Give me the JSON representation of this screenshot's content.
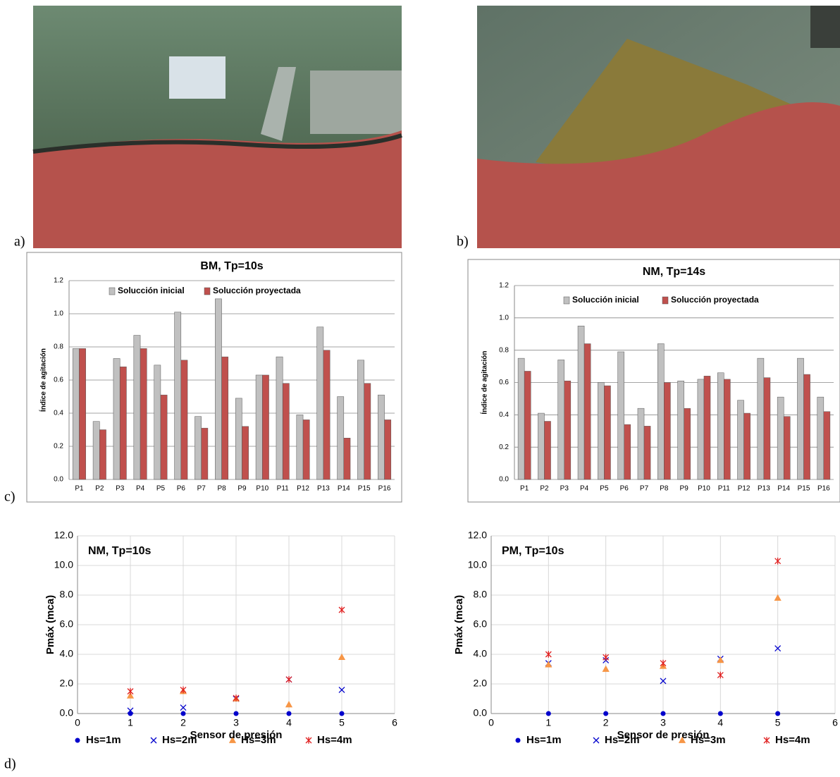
{
  "panel_labels": [
    "a)",
    "b)",
    "c)",
    "d)"
  ],
  "chart_data": [
    {
      "type": "bar",
      "title": "BM, Tp=10s",
      "y_label": "Índice de agitación",
      "categories": [
        "P1",
        "P2",
        "P3",
        "P4",
        "P5",
        "P6",
        "P7",
        "P8",
        "P9",
        "P10",
        "P11",
        "P12",
        "P13",
        "P14",
        "P15",
        "P16"
      ],
      "series": [
        {
          "name": "Solucción inicial",
          "color": "#c0c0c0",
          "values": [
            0.79,
            0.35,
            0.73,
            0.87,
            0.69,
            1.01,
            0.38,
            1.09,
            0.49,
            0.63,
            0.74,
            0.39,
            0.92,
            0.5,
            0.72,
            0.51
          ]
        },
        {
          "name": "Solucción proyectada",
          "color": "#c0504d",
          "values": [
            0.79,
            0.3,
            0.68,
            0.79,
            0.51,
            0.72,
            0.31,
            0.74,
            0.32,
            0.63,
            0.58,
            0.36,
            0.78,
            0.25,
            0.58,
            0.36
          ]
        }
      ],
      "ylim": [
        0,
        1.2
      ],
      "yticks": [
        {
          "value": 0,
          "label": "0.0"
        },
        {
          "value": 0.2,
          "label": "0.2"
        },
        {
          "value": 0.4,
          "label": "0.4"
        },
        {
          "value": 0.6,
          "label": "0.6"
        },
        {
          "value": 0.8,
          "label": "0.8"
        },
        {
          "value": 1,
          "label": "1.0"
        },
        {
          "value": 1.2,
          "label": "1.2"
        }
      ],
      "grid": true
    },
    {
      "type": "bar",
      "title": "NM, Tp=14s",
      "y_label": "Índice de agitación",
      "categories": [
        "P1",
        "P2",
        "P3",
        "P4",
        "P5",
        "P6",
        "P7",
        "P8",
        "P9",
        "P10",
        "P11",
        "P12",
        "P13",
        "P14",
        "P15",
        "P16"
      ],
      "series": [
        {
          "name": "Solucción inicial",
          "color": "#c0c0c0",
          "values": [
            0.75,
            0.41,
            0.74,
            0.95,
            0.6,
            0.79,
            0.44,
            0.84,
            0.61,
            0.62,
            0.66,
            0.49,
            0.75,
            0.51,
            0.75,
            0.51
          ]
        },
        {
          "name": "Solucción proyectada",
          "color": "#c0504d",
          "values": [
            0.67,
            0.36,
            0.61,
            0.84,
            0.58,
            0.34,
            0.33,
            0.6,
            0.44,
            0.64,
            0.62,
            0.41,
            0.63,
            0.39,
            0.65,
            0.42
          ]
        }
      ],
      "ylim": [
        0,
        1.2
      ],
      "yticks": [
        {
          "value": 0,
          "label": "0.0"
        },
        {
          "value": 0.2,
          "label": "0.2"
        },
        {
          "value": 0.4,
          "label": "0.4"
        },
        {
          "value": 0.6,
          "label": "0.6"
        },
        {
          "value": 0.8,
          "label": "0.8"
        },
        {
          "value": 1,
          "label": "1.0"
        },
        {
          "value": 1.2,
          "label": "1.2"
        }
      ],
      "grid": true
    },
    {
      "type": "scatter",
      "title": "NM, Tp=10s",
      "x_label": "Sensor de presión",
      "y_label": "Pmáx (mca)",
      "x": [
        1,
        2,
        3,
        4,
        5
      ],
      "series": [
        {
          "name": "Hs=1m",
          "color": "#0000cc",
          "marker": "circle",
          "values": [
            0,
            0,
            0,
            0,
            0
          ]
        },
        {
          "name": "Hs=2m",
          "color": "#0000cc",
          "marker": "x",
          "values": [
            0.2,
            0.4,
            1.0,
            2.3,
            1.6
          ]
        },
        {
          "name": "Hs=3m",
          "color": "#f79646",
          "marker": "triangle",
          "values": [
            1.2,
            1.5,
            1.0,
            0.6,
            3.8
          ]
        },
        {
          "name": "Hs=4m",
          "color": "#e02020",
          "marker": "star",
          "values": [
            1.5,
            1.6,
            1.05,
            2.3,
            7.0
          ]
        }
      ],
      "xlim": [
        0,
        6
      ],
      "xticks": [
        0,
        1,
        2,
        3,
        4,
        5,
        6
      ],
      "ylim": [
        0,
        12
      ],
      "yticks": [
        {
          "value": 0,
          "label": "0.0"
        },
        {
          "value": 2,
          "label": "2.0"
        },
        {
          "value": 4,
          "label": "4.0"
        },
        {
          "value": 6,
          "label": "6.0"
        },
        {
          "value": 8,
          "label": "8.0"
        },
        {
          "value": 10,
          "label": "10.0"
        },
        {
          "value": 12,
          "label": "12.0"
        }
      ],
      "grid": true
    },
    {
      "type": "scatter",
      "title": "PM, Tp=10s",
      "x_label": "Sensor de presión",
      "y_label": "Pmáx (mca)",
      "x": [
        1,
        2,
        3,
        4,
        5
      ],
      "series": [
        {
          "name": "Hs=1m",
          "color": "#0000cc",
          "marker": "circle",
          "values": [
            0,
            0,
            0,
            0,
            0
          ]
        },
        {
          "name": "Hs=2m",
          "color": "#0000cc",
          "marker": "x",
          "values": [
            3.4,
            3.6,
            2.2,
            3.7,
            4.4
          ]
        },
        {
          "name": "Hs=3m",
          "color": "#f79646",
          "marker": "triangle",
          "values": [
            3.3,
            3.0,
            3.2,
            3.6,
            7.8
          ]
        },
        {
          "name": "Hs=4m",
          "color": "#e02020",
          "marker": "star",
          "values": [
            4.0,
            3.8,
            3.4,
            2.6,
            10.3
          ]
        }
      ],
      "xlim": [
        0,
        6
      ],
      "xticks": [
        0,
        1,
        2,
        3,
        4,
        5,
        6
      ],
      "ylim": [
        0,
        12
      ],
      "yticks": [
        {
          "value": 0,
          "label": "0.0"
        },
        {
          "value": 2,
          "label": "2.0"
        },
        {
          "value": 4,
          "label": "4.0"
        },
        {
          "value": 6,
          "label": "6.0"
        },
        {
          "value": 8,
          "label": "8.0"
        },
        {
          "value": 10,
          "label": "10.0"
        },
        {
          "value": 12,
          "label": "12.0"
        }
      ],
      "grid": true
    }
  ]
}
